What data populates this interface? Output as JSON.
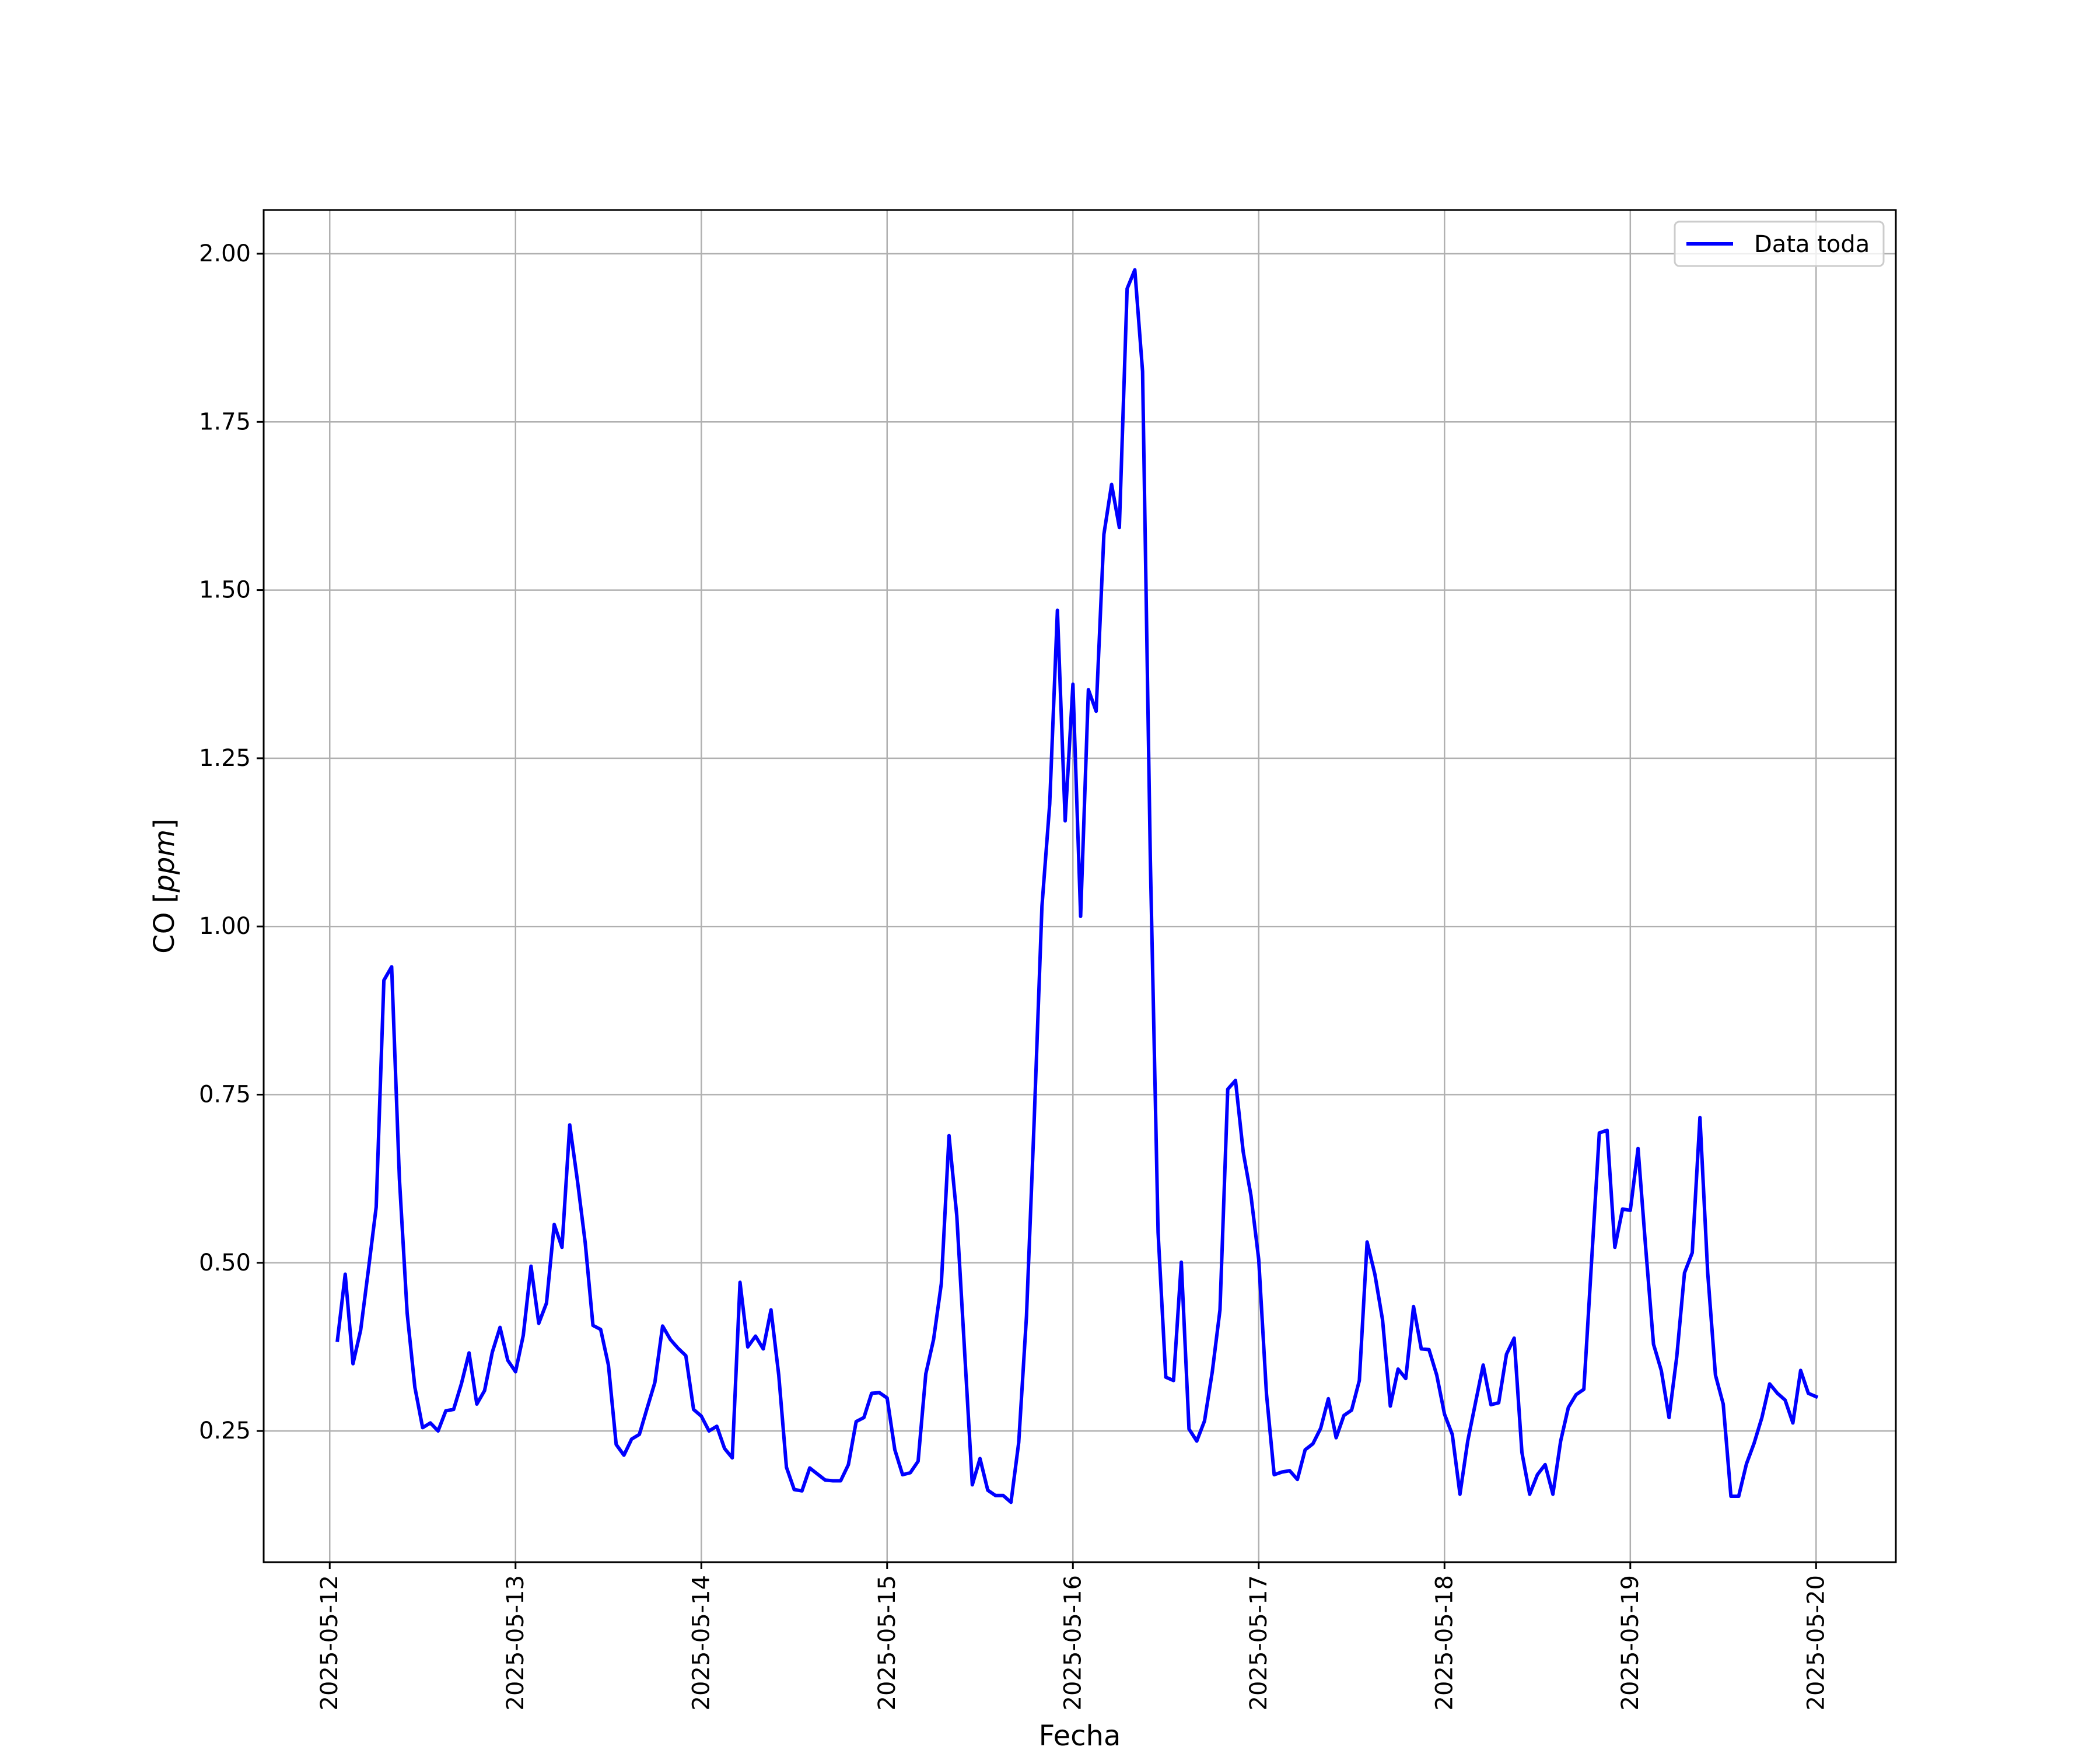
{
  "chart_data": {
    "type": "line",
    "title": "",
    "xlabel": "Fecha",
    "ylabel": "CO [ppm]",
    "ylabel_parts": {
      "base": "CO [",
      "unit": "ppm",
      "close": "]"
    },
    "ylim": [
      0.055,
      2.065
    ],
    "xlim": [
      "2025-05-11 15:28",
      "2025-05-20 10:18"
    ],
    "grid": true,
    "legend_position": "top-right",
    "x_tick_labels": [
      "2025-05-12",
      "2025-05-13",
      "2025-05-14",
      "2025-05-15",
      "2025-05-16",
      "2025-05-17",
      "2025-05-18",
      "2025-05-19",
      "2025-05-20"
    ],
    "y_tick_labels": [
      "0.25",
      "0.50",
      "0.75",
      "1.00",
      "1.25",
      "1.50",
      "1.75",
      "2.00"
    ],
    "series": [
      {
        "name": "Data toda",
        "color": "#0000ff",
        "points": [
          [
            "2025-05-12 01:00",
            0.385
          ],
          [
            "2025-05-12 02:00",
            0.483
          ],
          [
            "2025-05-12 03:00",
            0.35
          ],
          [
            "2025-05-12 04:00",
            0.4
          ],
          [
            "2025-05-12 05:00",
            0.49
          ],
          [
            "2025-05-12 06:00",
            0.583
          ],
          [
            "2025-05-12 07:00",
            0.92
          ],
          [
            "2025-05-12 08:00",
            0.94
          ],
          [
            "2025-05-12 09:00",
            0.625
          ],
          [
            "2025-05-12 10:00",
            0.425
          ],
          [
            "2025-05-12 11:00",
            0.315
          ],
          [
            "2025-05-12 12:00",
            0.255
          ],
          [
            "2025-05-12 13:00",
            0.262
          ],
          [
            "2025-05-12 14:00",
            0.25
          ],
          [
            "2025-05-12 15:00",
            0.28
          ],
          [
            "2025-05-12 16:00",
            0.282
          ],
          [
            "2025-05-12 17:00",
            0.32
          ],
          [
            "2025-05-12 18:00",
            0.366
          ],
          [
            "2025-05-12 19:00",
            0.29
          ],
          [
            "2025-05-12 20:00",
            0.31
          ],
          [
            "2025-05-12 21:00",
            0.367
          ],
          [
            "2025-05-12 22:00",
            0.404
          ],
          [
            "2025-05-12 23:00",
            0.355
          ],
          [
            "2025-05-13 00:00",
            0.338
          ],
          [
            "2025-05-13 01:00",
            0.392
          ],
          [
            "2025-05-13 02:00",
            0.495
          ],
          [
            "2025-05-13 03:00",
            0.41
          ],
          [
            "2025-05-13 04:00",
            0.44
          ],
          [
            "2025-05-13 05:00",
            0.557
          ],
          [
            "2025-05-13 06:00",
            0.523
          ],
          [
            "2025-05-13 07:00",
            0.705
          ],
          [
            "2025-05-13 08:00",
            0.622
          ],
          [
            "2025-05-13 09:00",
            0.53
          ],
          [
            "2025-05-13 10:00",
            0.407
          ],
          [
            "2025-05-13 11:00",
            0.401
          ],
          [
            "2025-05-13 12:00",
            0.348
          ],
          [
            "2025-05-13 13:00",
            0.23
          ],
          [
            "2025-05-13 14:00",
            0.214
          ],
          [
            "2025-05-13 15:00",
            0.238
          ],
          [
            "2025-05-13 16:00",
            0.245
          ],
          [
            "2025-05-13 17:00",
            0.284
          ],
          [
            "2025-05-13 18:00",
            0.322
          ],
          [
            "2025-05-13 19:00",
            0.406
          ],
          [
            "2025-05-13 20:00",
            0.386
          ],
          [
            "2025-05-13 21:00",
            0.373
          ],
          [
            "2025-05-13 22:00",
            0.362
          ],
          [
            "2025-05-13 23:00",
            0.282
          ],
          [
            "2025-05-14 00:00",
            0.272
          ],
          [
            "2025-05-14 01:00",
            0.25
          ],
          [
            "2025-05-14 02:00",
            0.257
          ],
          [
            "2025-05-14 03:00",
            0.224
          ],
          [
            "2025-05-14 04:00",
            0.21
          ],
          [
            "2025-05-14 05:00",
            0.471
          ],
          [
            "2025-05-14 06:00",
            0.375
          ],
          [
            "2025-05-14 07:00",
            0.391
          ],
          [
            "2025-05-14 08:00",
            0.372
          ],
          [
            "2025-05-14 09:00",
            0.43
          ],
          [
            "2025-05-14 10:00",
            0.333
          ],
          [
            "2025-05-14 11:00",
            0.196
          ],
          [
            "2025-05-14 12:00",
            0.163
          ],
          [
            "2025-05-14 13:00",
            0.161
          ],
          [
            "2025-05-14 14:00",
            0.195
          ],
          [
            "2025-05-14 15:00",
            0.186
          ],
          [
            "2025-05-14 16:00",
            0.177
          ],
          [
            "2025-05-14 17:00",
            0.176
          ],
          [
            "2025-05-14 18:00",
            0.176
          ],
          [
            "2025-05-14 19:00",
            0.2
          ],
          [
            "2025-05-14 20:00",
            0.264
          ],
          [
            "2025-05-14 21:00",
            0.27
          ],
          [
            "2025-05-14 22:00",
            0.306
          ],
          [
            "2025-05-14 23:00",
            0.307
          ],
          [
            "2025-05-15 00:00",
            0.299
          ],
          [
            "2025-05-15 01:00",
            0.222
          ],
          [
            "2025-05-15 02:00",
            0.185
          ],
          [
            "2025-05-15 03:00",
            0.188
          ],
          [
            "2025-05-15 04:00",
            0.205
          ],
          [
            "2025-05-15 05:00",
            0.335
          ],
          [
            "2025-05-15 06:00",
            0.386
          ],
          [
            "2025-05-15 07:00",
            0.469
          ],
          [
            "2025-05-15 08:00",
            0.689
          ],
          [
            "2025-05-15 09:00",
            0.57
          ],
          [
            "2025-05-15 10:00",
            0.37
          ],
          [
            "2025-05-15 11:00",
            0.17
          ],
          [
            "2025-05-15 12:00",
            0.209
          ],
          [
            "2025-05-15 13:00",
            0.162
          ],
          [
            "2025-05-15 14:00",
            0.154
          ],
          [
            "2025-05-15 15:00",
            0.154
          ],
          [
            "2025-05-15 16:00",
            0.144
          ],
          [
            "2025-05-15 17:00",
            0.233
          ],
          [
            "2025-05-15 18:00",
            0.421
          ],
          [
            "2025-05-15 19:00",
            0.712
          ],
          [
            "2025-05-15 20:00",
            1.03
          ],
          [
            "2025-05-15 21:00",
            1.182
          ],
          [
            "2025-05-15 22:00",
            1.47
          ],
          [
            "2025-05-15 23:00",
            1.157
          ],
          [
            "2025-05-16 00:00",
            1.36
          ],
          [
            "2025-05-16 01:00",
            1.015
          ],
          [
            "2025-05-16 02:00",
            1.352
          ],
          [
            "2025-05-16 03:00",
            1.32
          ],
          [
            "2025-05-16 04:00",
            1.583
          ],
          [
            "2025-05-16 05:00",
            1.657
          ],
          [
            "2025-05-16 06:00",
            1.593
          ],
          [
            "2025-05-16 07:00",
            1.948
          ],
          [
            "2025-05-16 08:00",
            1.976
          ],
          [
            "2025-05-16 09:00",
            1.825
          ],
          [
            "2025-05-16 10:00",
            1.1
          ],
          [
            "2025-05-16 11:00",
            0.545
          ],
          [
            "2025-05-16 12:00",
            0.33
          ],
          [
            "2025-05-16 13:00",
            0.325
          ],
          [
            "2025-05-16 14:00",
            0.501
          ],
          [
            "2025-05-16 15:00",
            0.253
          ],
          [
            "2025-05-16 16:00",
            0.235
          ],
          [
            "2025-05-16 17:00",
            0.265
          ],
          [
            "2025-05-16 18:00",
            0.338
          ],
          [
            "2025-05-16 19:00",
            0.43
          ],
          [
            "2025-05-16 20:00",
            0.758
          ],
          [
            "2025-05-16 21:00",
            0.771
          ],
          [
            "2025-05-16 22:00",
            0.665
          ],
          [
            "2025-05-16 23:00",
            0.6
          ],
          [
            "2025-05-17 00:00",
            0.505
          ],
          [
            "2025-05-17 01:00",
            0.305
          ],
          [
            "2025-05-17 02:00",
            0.185
          ],
          [
            "2025-05-17 03:00",
            0.189
          ],
          [
            "2025-05-17 04:00",
            0.191
          ],
          [
            "2025-05-17 05:00",
            0.178
          ],
          [
            "2025-05-17 06:00",
            0.222
          ],
          [
            "2025-05-17 07:00",
            0.231
          ],
          [
            "2025-05-17 08:00",
            0.254
          ],
          [
            "2025-05-17 09:00",
            0.298
          ],
          [
            "2025-05-17 10:00",
            0.24
          ],
          [
            "2025-05-17 11:00",
            0.273
          ],
          [
            "2025-05-17 12:00",
            0.281
          ],
          [
            "2025-05-17 13:00",
            0.325
          ],
          [
            "2025-05-17 14:00",
            0.531
          ],
          [
            "2025-05-17 15:00",
            0.483
          ],
          [
            "2025-05-17 16:00",
            0.415
          ],
          [
            "2025-05-17 17:00",
            0.287
          ],
          [
            "2025-05-17 18:00",
            0.342
          ],
          [
            "2025-05-17 19:00",
            0.328
          ],
          [
            "2025-05-17 20:00",
            0.435
          ],
          [
            "2025-05-17 21:00",
            0.372
          ],
          [
            "2025-05-17 22:00",
            0.371
          ],
          [
            "2025-05-17 23:00",
            0.333
          ],
          [
            "2025-05-18 00:00",
            0.275
          ],
          [
            "2025-05-18 01:00",
            0.245
          ],
          [
            "2025-05-18 02:00",
            0.156
          ],
          [
            "2025-05-18 03:00",
            0.235
          ],
          [
            "2025-05-18 04:00",
            0.292
          ],
          [
            "2025-05-18 05:00",
            0.348
          ],
          [
            "2025-05-18 06:00",
            0.289
          ],
          [
            "2025-05-18 07:00",
            0.292
          ],
          [
            "2025-05-18 08:00",
            0.364
          ],
          [
            "2025-05-18 09:00",
            0.388
          ],
          [
            "2025-05-18 10:00",
            0.218
          ],
          [
            "2025-05-18 11:00",
            0.156
          ],
          [
            "2025-05-18 12:00",
            0.185
          ],
          [
            "2025-05-18 13:00",
            0.2
          ],
          [
            "2025-05-18 14:00",
            0.156
          ],
          [
            "2025-05-18 15:00",
            0.235
          ],
          [
            "2025-05-18 16:00",
            0.285
          ],
          [
            "2025-05-18 17:00",
            0.304
          ],
          [
            "2025-05-18 18:00",
            0.312
          ],
          [
            "2025-05-18 19:00",
            0.502
          ],
          [
            "2025-05-18 20:00",
            0.693
          ],
          [
            "2025-05-18 21:00",
            0.697
          ],
          [
            "2025-05-18 22:00",
            0.523
          ],
          [
            "2025-05-18 23:00",
            0.58
          ],
          [
            "2025-05-19 00:00",
            0.578
          ],
          [
            "2025-05-19 01:00",
            0.67
          ],
          [
            "2025-05-19 02:00",
            0.521
          ],
          [
            "2025-05-19 03:00",
            0.379
          ],
          [
            "2025-05-19 04:00",
            0.34
          ],
          [
            "2025-05-19 05:00",
            0.27
          ],
          [
            "2025-05-19 06:00",
            0.36
          ],
          [
            "2025-05-19 07:00",
            0.485
          ],
          [
            "2025-05-19 08:00",
            0.515
          ],
          [
            "2025-05-19 09:00",
            0.716
          ],
          [
            "2025-05-19 10:00",
            0.485
          ],
          [
            "2025-05-19 11:00",
            0.333
          ],
          [
            "2025-05-19 12:00",
            0.29
          ],
          [
            "2025-05-19 13:00",
            0.153
          ],
          [
            "2025-05-19 14:00",
            0.153
          ],
          [
            "2025-05-19 15:00",
            0.201
          ],
          [
            "2025-05-19 16:00",
            0.232
          ],
          [
            "2025-05-19 17:00",
            0.27
          ],
          [
            "2025-05-19 18:00",
            0.32
          ],
          [
            "2025-05-19 19:00",
            0.306
          ],
          [
            "2025-05-19 20:00",
            0.296
          ],
          [
            "2025-05-19 21:00",
            0.262
          ],
          [
            "2025-05-19 22:00",
            0.34
          ],
          [
            "2025-05-19 23:00",
            0.306
          ],
          [
            "2025-05-20 00:00",
            0.301
          ]
        ]
      }
    ]
  }
}
